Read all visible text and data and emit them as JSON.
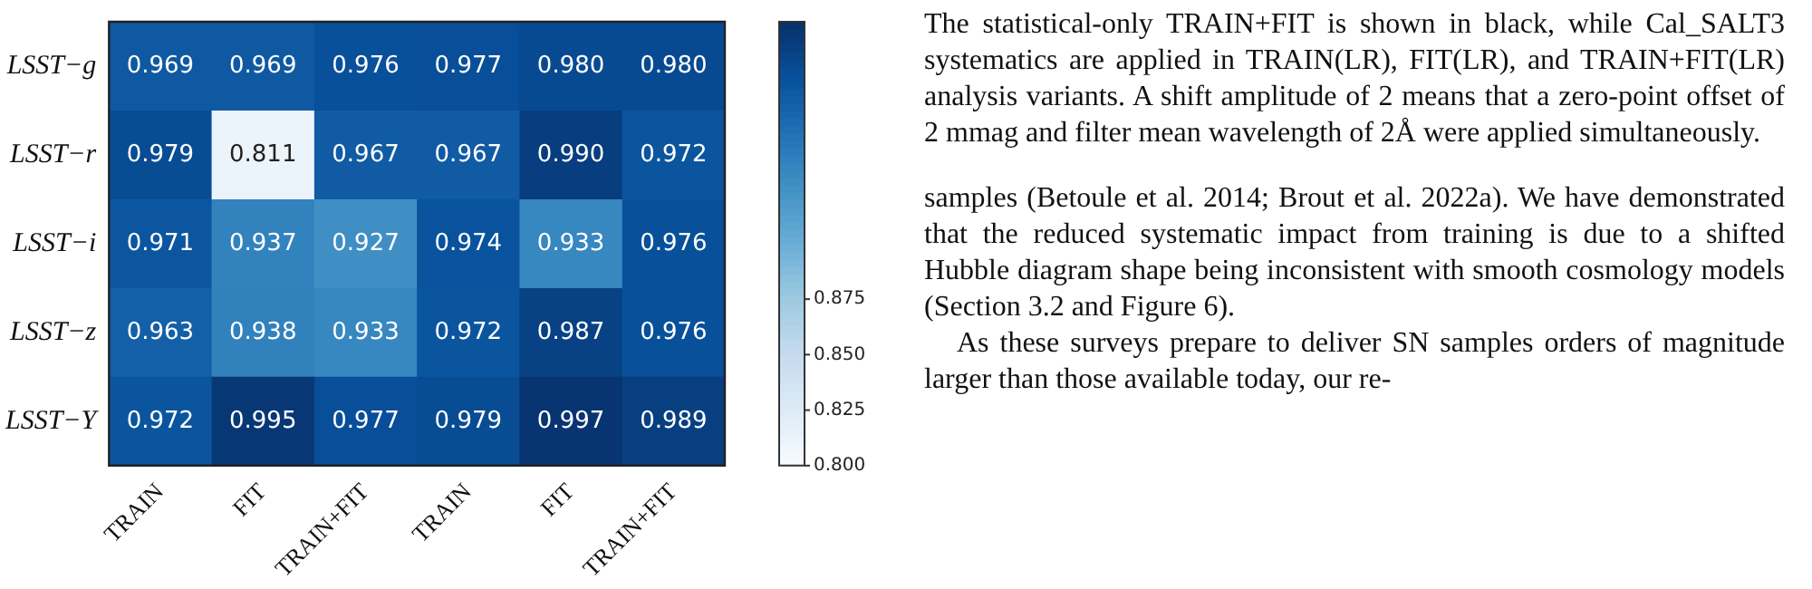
{
  "chart_data": {
    "type": "heatmap",
    "categories": [
      "TRAIN",
      "FIT",
      "TRAIN+FIT",
      "TRAIN",
      "FIT",
      "TRAIN+FIT"
    ],
    "y_categories": [
      "LSST−g",
      "LSST−r",
      "LSST−i",
      "LSST−z",
      "LSST−Y"
    ],
    "cells": [
      [
        0.969,
        0.969,
        0.976,
        0.977,
        0.98,
        0.98
      ],
      [
        0.979,
        0.811,
        0.967,
        0.967,
        0.99,
        0.972
      ],
      [
        0.971,
        0.937,
        0.927,
        0.974,
        0.933,
        0.976
      ],
      [
        0.963,
        0.938,
        0.933,
        0.972,
        0.987,
        0.976
      ],
      [
        0.972,
        0.995,
        0.977,
        0.979,
        0.997,
        0.989
      ]
    ],
    "cell_labels": [
      [
        "0.969",
        "0.969",
        "0.976",
        "0.977",
        "0.980",
        "0.980"
      ],
      [
        "0.979",
        "0.811",
        "0.967",
        "0.967",
        "0.990",
        "0.972"
      ],
      [
        "0.971",
        "0.937",
        "0.927",
        "0.974",
        "0.933",
        "0.976"
      ],
      [
        "0.963",
        "0.938",
        "0.933",
        "0.972",
        "0.987",
        "0.976"
      ],
      [
        "0.972",
        "0.995",
        "0.977",
        "0.979",
        "0.997",
        "0.989"
      ]
    ],
    "clim": [
      0.8,
      1.0
    ],
    "cticks": [
      {
        "value": 0.8,
        "label": "0.800"
      },
      {
        "value": 0.825,
        "label": "0.825"
      },
      {
        "value": 0.85,
        "label": "0.850"
      },
      {
        "value": 0.875,
        "label": "0.875"
      }
    ],
    "annotations": [
      "The statistical-only TRAIN+FIT is shown in black, while Cal_SALT3 systematics are applied in TRAIN(LR), FIT(LR), and TRAIN+FIT(LR) analysis variants. A shift amplitude of 2 means that a zero-point offset of 2 mmag and filter mean wavelength of 2Å were applied simultaneously.",
      "samples (Betoule et al. 2014; Brout et al. 2022a). We have demonstrated that the reduced systematic impact from training is due to a shifted Hubble diagram shape being inconsistent with smooth cosmology models (Section 3.2 and Figure 6).",
      "As these surveys prepare to deliver SN samples orders of magnitude larger than those available today, our re-"
    ]
  }
}
